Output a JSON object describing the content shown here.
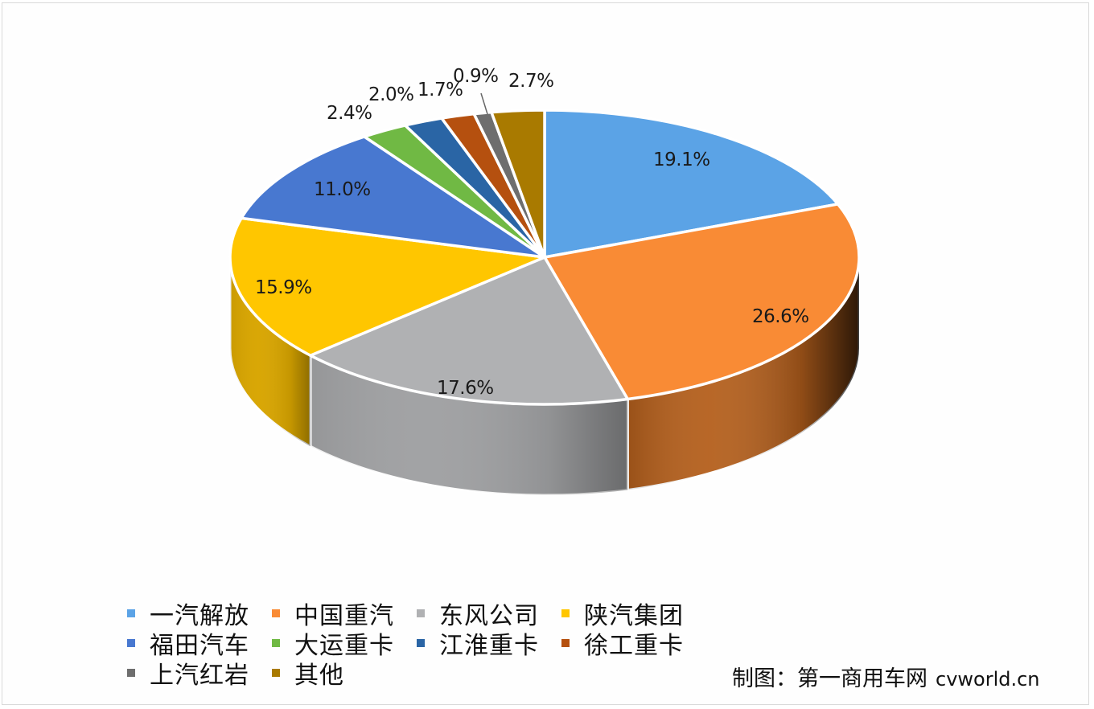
{
  "chart_data": {
    "type": "pie",
    "style": "3d",
    "title": "",
    "categories": [
      "一汽解放",
      "中国重汽",
      "东风公司",
      "陕汽集团",
      "福田汽车",
      "大运重卡",
      "江淮重卡",
      "徐工重卡",
      "上汽红岩",
      "其他"
    ],
    "values": [
      19.1,
      26.6,
      17.6,
      15.9,
      11.0,
      2.4,
      2.0,
      1.7,
      0.9,
      2.7
    ],
    "labels": [
      "19.1%",
      "26.6%",
      "17.6%",
      "15.9%",
      "11.0%",
      "2.4%",
      "2.0%",
      "1.7%",
      "0.9%",
      "2.7%"
    ],
    "colors": [
      "#5ba3e6",
      "#f98b35",
      "#b0b1b3",
      "#ffc600",
      "#4878d0",
      "#70b944",
      "#2a65a5",
      "#b5500f",
      "#6e6e6e",
      "#a97a00"
    ],
    "side_colors": [
      "#3f7fbf",
      "#b45f1c",
      "#a0a1a3",
      "#d8a500",
      "#345fae",
      "#55922f",
      "#1e4c80",
      "#8a3b0a",
      "#555555",
      "#86610a"
    ],
    "legend_position": "bottom",
    "start_angle_deg": 90,
    "direction": "clockwise"
  },
  "legend": {
    "rows": [
      [
        0,
        1,
        2,
        3
      ],
      [
        4,
        5,
        6,
        7
      ],
      [
        8,
        9
      ]
    ]
  },
  "credit": {
    "text": "制图：第一商用车网",
    "site": "cvworld.cn"
  }
}
